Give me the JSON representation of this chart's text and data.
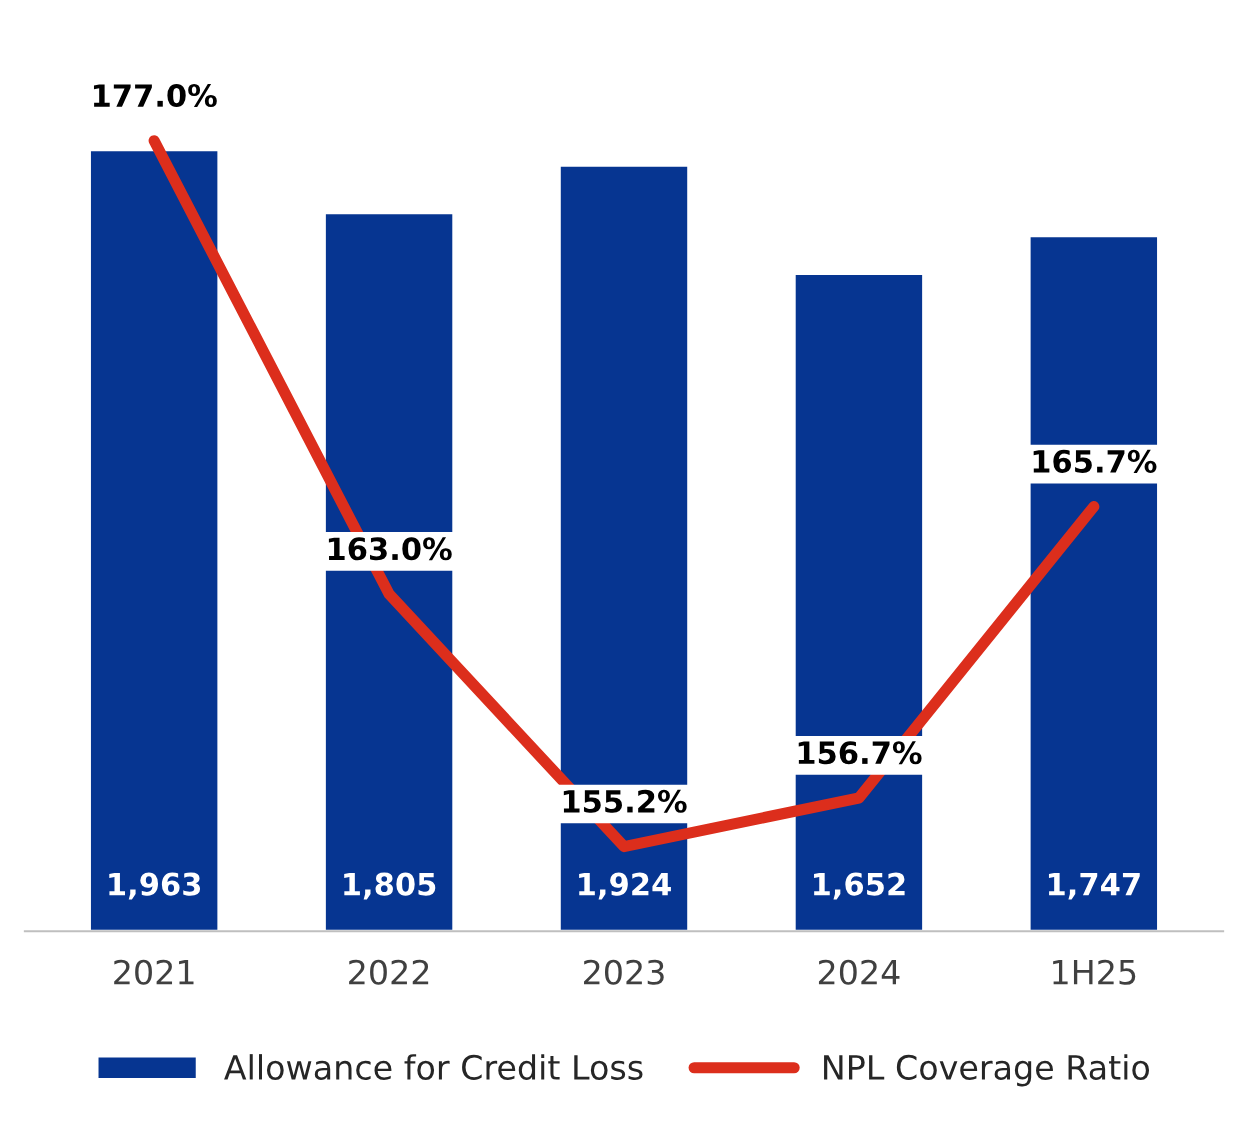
{
  "chart_data": {
    "type": "bar",
    "categories": [
      "2021",
      "2022",
      "2023",
      "2024",
      "1H25"
    ],
    "series": [
      {
        "name": "Allowance for Credit Loss",
        "color": "#063591",
        "values": [
          1963,
          1805,
          1924,
          1652,
          1747
        ],
        "value_labels": [
          "1,963",
          "1,805",
          "1,924",
          "1,652",
          "1,747"
        ]
      },
      {
        "name": "NPL Coverage Ratio",
        "type": "line",
        "axis": "y2",
        "color": "#dc2e1c",
        "values": [
          177.0,
          163.0,
          155.2,
          156.7,
          165.7
        ],
        "value_labels": [
          "177.0%",
          "163.0%",
          "155.2%",
          "156.7%",
          "165.7%"
        ]
      }
    ],
    "data_labels": true,
    "tick_labels": "x",
    "legend": "bottom",
    "grid": false
  }
}
